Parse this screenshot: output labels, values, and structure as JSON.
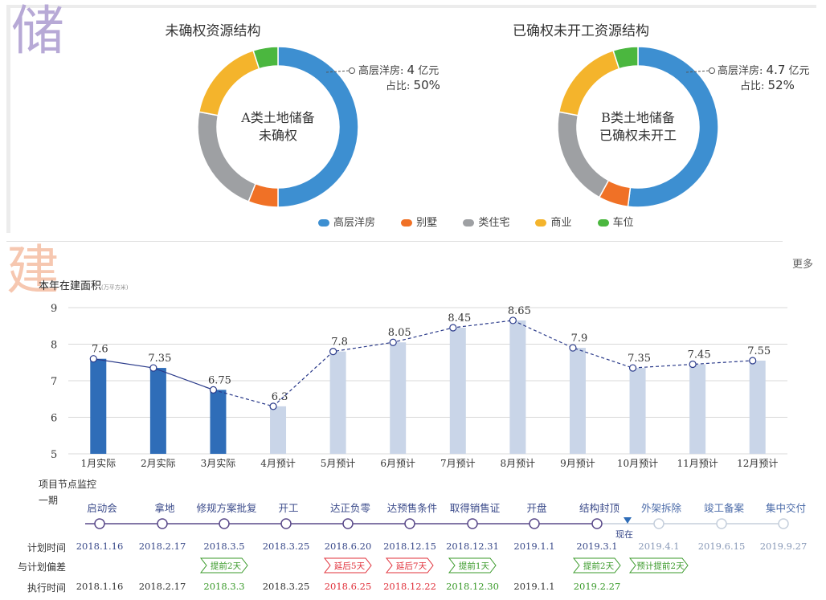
{
  "watermarks": {
    "top": "储",
    "mid": "建"
  },
  "donuts": [
    {
      "title": "未确权资源结构",
      "center_line1": "A类土地储备",
      "center_line2": "未确权",
      "callout_label": "高层洋房:",
      "callout_value": "4",
      "callout_unit": "亿元",
      "share_label": "占比:",
      "share_value": "50%",
      "segments": [
        {
          "name": "高层洋房",
          "value": 50
        },
        {
          "name": "别墅",
          "value": 6
        },
        {
          "name": "类住宅",
          "value": 22
        },
        {
          "name": "商业",
          "value": 17
        },
        {
          "name": "车位",
          "value": 5
        }
      ]
    },
    {
      "title": "已确权未开工资源结构",
      "center_line1": "B类土地储备",
      "center_line2": "已确权未开工",
      "callout_label": "高层洋房:",
      "callout_value": "4.7",
      "callout_unit": "亿元",
      "share_label": "占比:",
      "share_value": "52%",
      "segments": [
        {
          "name": "高层洋房",
          "value": 52
        },
        {
          "name": "别墅",
          "value": 6
        },
        {
          "name": "类住宅",
          "value": 20
        },
        {
          "name": "商业",
          "value": 17
        },
        {
          "name": "车位",
          "value": 5
        }
      ]
    }
  ],
  "legend": [
    {
      "label": "高层洋房",
      "color": "#3d8fd1"
    },
    {
      "label": "别墅",
      "color": "#f07126"
    },
    {
      "label": "类住宅",
      "color": "#9ea0a3"
    },
    {
      "label": "商业",
      "color": "#f4b42c"
    },
    {
      "label": "车位",
      "color": "#4bb73f"
    }
  ],
  "more_link": "更多",
  "chart_title": "本年在建面积",
  "chart_unit": "(万平方米)",
  "chart_data": {
    "type": "bar",
    "categories": [
      "1月实际",
      "2月实际",
      "3月实际",
      "4月预计",
      "5月预计",
      "6月预计",
      "7月预计",
      "8月预计",
      "9月预计",
      "10月预计",
      "11月预计",
      "12月预计"
    ],
    "values": [
      7.6,
      7.35,
      6.75,
      6.3,
      7.8,
      8.05,
      8.45,
      8.65,
      7.9,
      7.35,
      7.45,
      7.55
    ],
    "actual_count": 3,
    "ylim": [
      5,
      9
    ],
    "yticks": [
      5,
      6,
      7,
      8,
      9
    ],
    "grid": true,
    "colors": {
      "actual": "#2f6db8",
      "forecast": "#c9d5e8",
      "line": "#2a3a8a"
    }
  },
  "timeline": {
    "section_label": "项目节点监控",
    "phase_label": "一期",
    "row_labels": {
      "plan": "计划时间",
      "deviation": "与计划偏差",
      "actual": "执行时间"
    },
    "now_label": "现在",
    "milestones": [
      {
        "label": "启动会",
        "plan": "2018.1.16",
        "dev": "",
        "actual": "2018.1.16",
        "dev_type": "",
        "actual_type": "normal",
        "done": true
      },
      {
        "label": "拿地",
        "plan": "2018.2.17",
        "dev": "",
        "actual": "2018.2.17",
        "dev_type": "",
        "actual_type": "normal",
        "done": true
      },
      {
        "label": "修规方案批复",
        "plan": "2018.3.5",
        "dev": "提前2天",
        "actual": "2018.3.3",
        "dev_type": "early",
        "actual_type": "green",
        "done": true
      },
      {
        "label": "开工",
        "plan": "2018.3.25",
        "dev": "",
        "actual": "2018.3.25",
        "dev_type": "",
        "actual_type": "normal",
        "done": true
      },
      {
        "label": "达正负零",
        "plan": "2018.6.20",
        "dev": "延后5天",
        "actual": "2018.6.25",
        "dev_type": "late",
        "actual_type": "red",
        "done": true
      },
      {
        "label": "达预售条件",
        "plan": "2018.12.15",
        "dev": "延后7天",
        "actual": "2018.12.22",
        "dev_type": "late",
        "actual_type": "red",
        "done": true
      },
      {
        "label": "取得销售证",
        "plan": "2018.12.31",
        "dev": "提前1天",
        "actual": "2018.12.30",
        "dev_type": "early",
        "actual_type": "green",
        "done": true
      },
      {
        "label": "开盘",
        "plan": "2019.1.1",
        "dev": "",
        "actual": "2019.1.1",
        "dev_type": "",
        "actual_type": "normal",
        "done": true
      },
      {
        "label": "结构封顶",
        "plan": "2019.3.1",
        "dev": "提前2天",
        "actual": "2019.2.27",
        "dev_type": "early",
        "actual_type": "green",
        "done": true
      },
      {
        "label": "外架拆除",
        "plan": "2019.4.1",
        "dev": "预计提前2天",
        "actual": "",
        "dev_type": "early",
        "actual_type": "",
        "done": false
      },
      {
        "label": "竣工备案",
        "plan": "2019.6.15",
        "dev": "",
        "actual": "",
        "dev_type": "",
        "actual_type": "",
        "done": false
      },
      {
        "label": "集中交付",
        "plan": "2019.9.27",
        "dev": "",
        "actual": "",
        "dev_type": "",
        "actual_type": "",
        "done": false
      }
    ]
  }
}
